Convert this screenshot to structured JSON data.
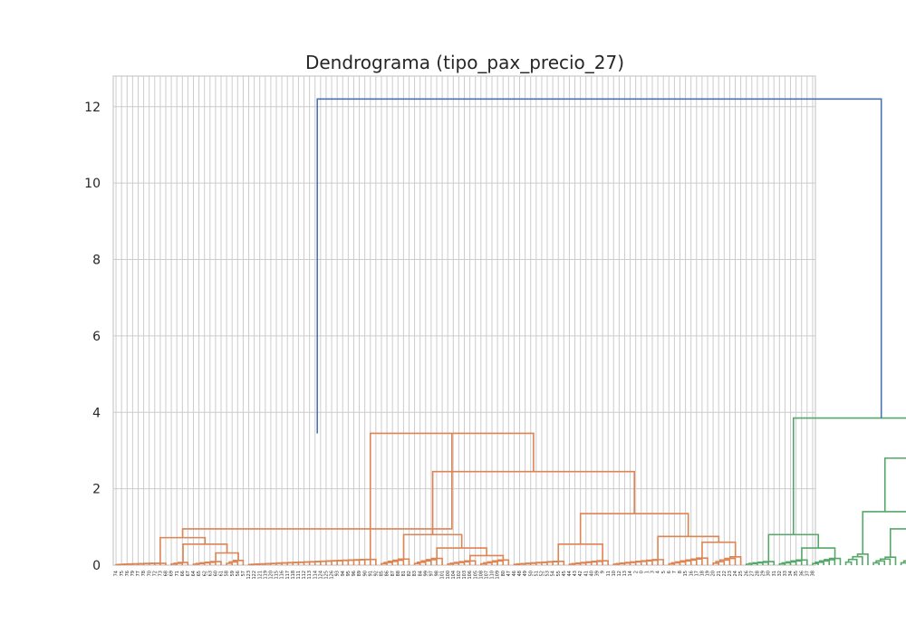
{
  "chart_data": {
    "type": "dendrogram",
    "title": "Dendrograma (tipo_pax_precio_27)",
    "xlabel": "",
    "ylabel": "",
    "ylim": [
      0,
      12.8
    ],
    "yticks": [
      0,
      2,
      4,
      6,
      8,
      10,
      12
    ],
    "grid": true,
    "colors": {
      "root": "#4c72b0",
      "cluster_1": "#dd8452",
      "cluster_2": "#55a868"
    },
    "merges": {
      "root": 12.2,
      "cluster_1": 3.45,
      "cluster_2": 3.85
    },
    "leaf_labels": [
      "74",
      "75",
      "76",
      "79",
      "77",
      "78",
      "70",
      "72",
      "73",
      "68",
      "69",
      "71",
      "66",
      "67",
      "64",
      "65",
      "62",
      "63",
      "60",
      "61",
      "58",
      "59",
      "56",
      "57",
      "123",
      "122",
      "121",
      "119",
      "120",
      "115",
      "116",
      "117",
      "118",
      "111",
      "112",
      "113",
      "114",
      "124",
      "125",
      "126",
      "93",
      "94",
      "95",
      "96",
      "89",
      "90",
      "91",
      "92",
      "85",
      "86",
      "87",
      "88",
      "81",
      "82",
      "83",
      "84",
      "99",
      "97",
      "98",
      "101",
      "100",
      "104",
      "102",
      "103",
      "106",
      "105",
      "108",
      "107",
      "110",
      "109",
      "80",
      "47",
      "46",
      "48",
      "49",
      "50",
      "51",
      "52",
      "53",
      "54",
      "55",
      "45",
      "44",
      "43",
      "42",
      "41",
      "40",
      "39",
      "9",
      "11",
      "10",
      "12",
      "13",
      "14",
      "2",
      "0",
      "1",
      "3",
      "4",
      "5",
      "6",
      "7",
      "8",
      "15",
      "16",
      "17",
      "18",
      "19",
      "20",
      "21",
      "22",
      "23",
      "24",
      "25",
      "26",
      "27",
      "28",
      "29",
      "30",
      "31",
      "32",
      "33",
      "34",
      "35",
      "36",
      "37",
      "38"
    ]
  }
}
